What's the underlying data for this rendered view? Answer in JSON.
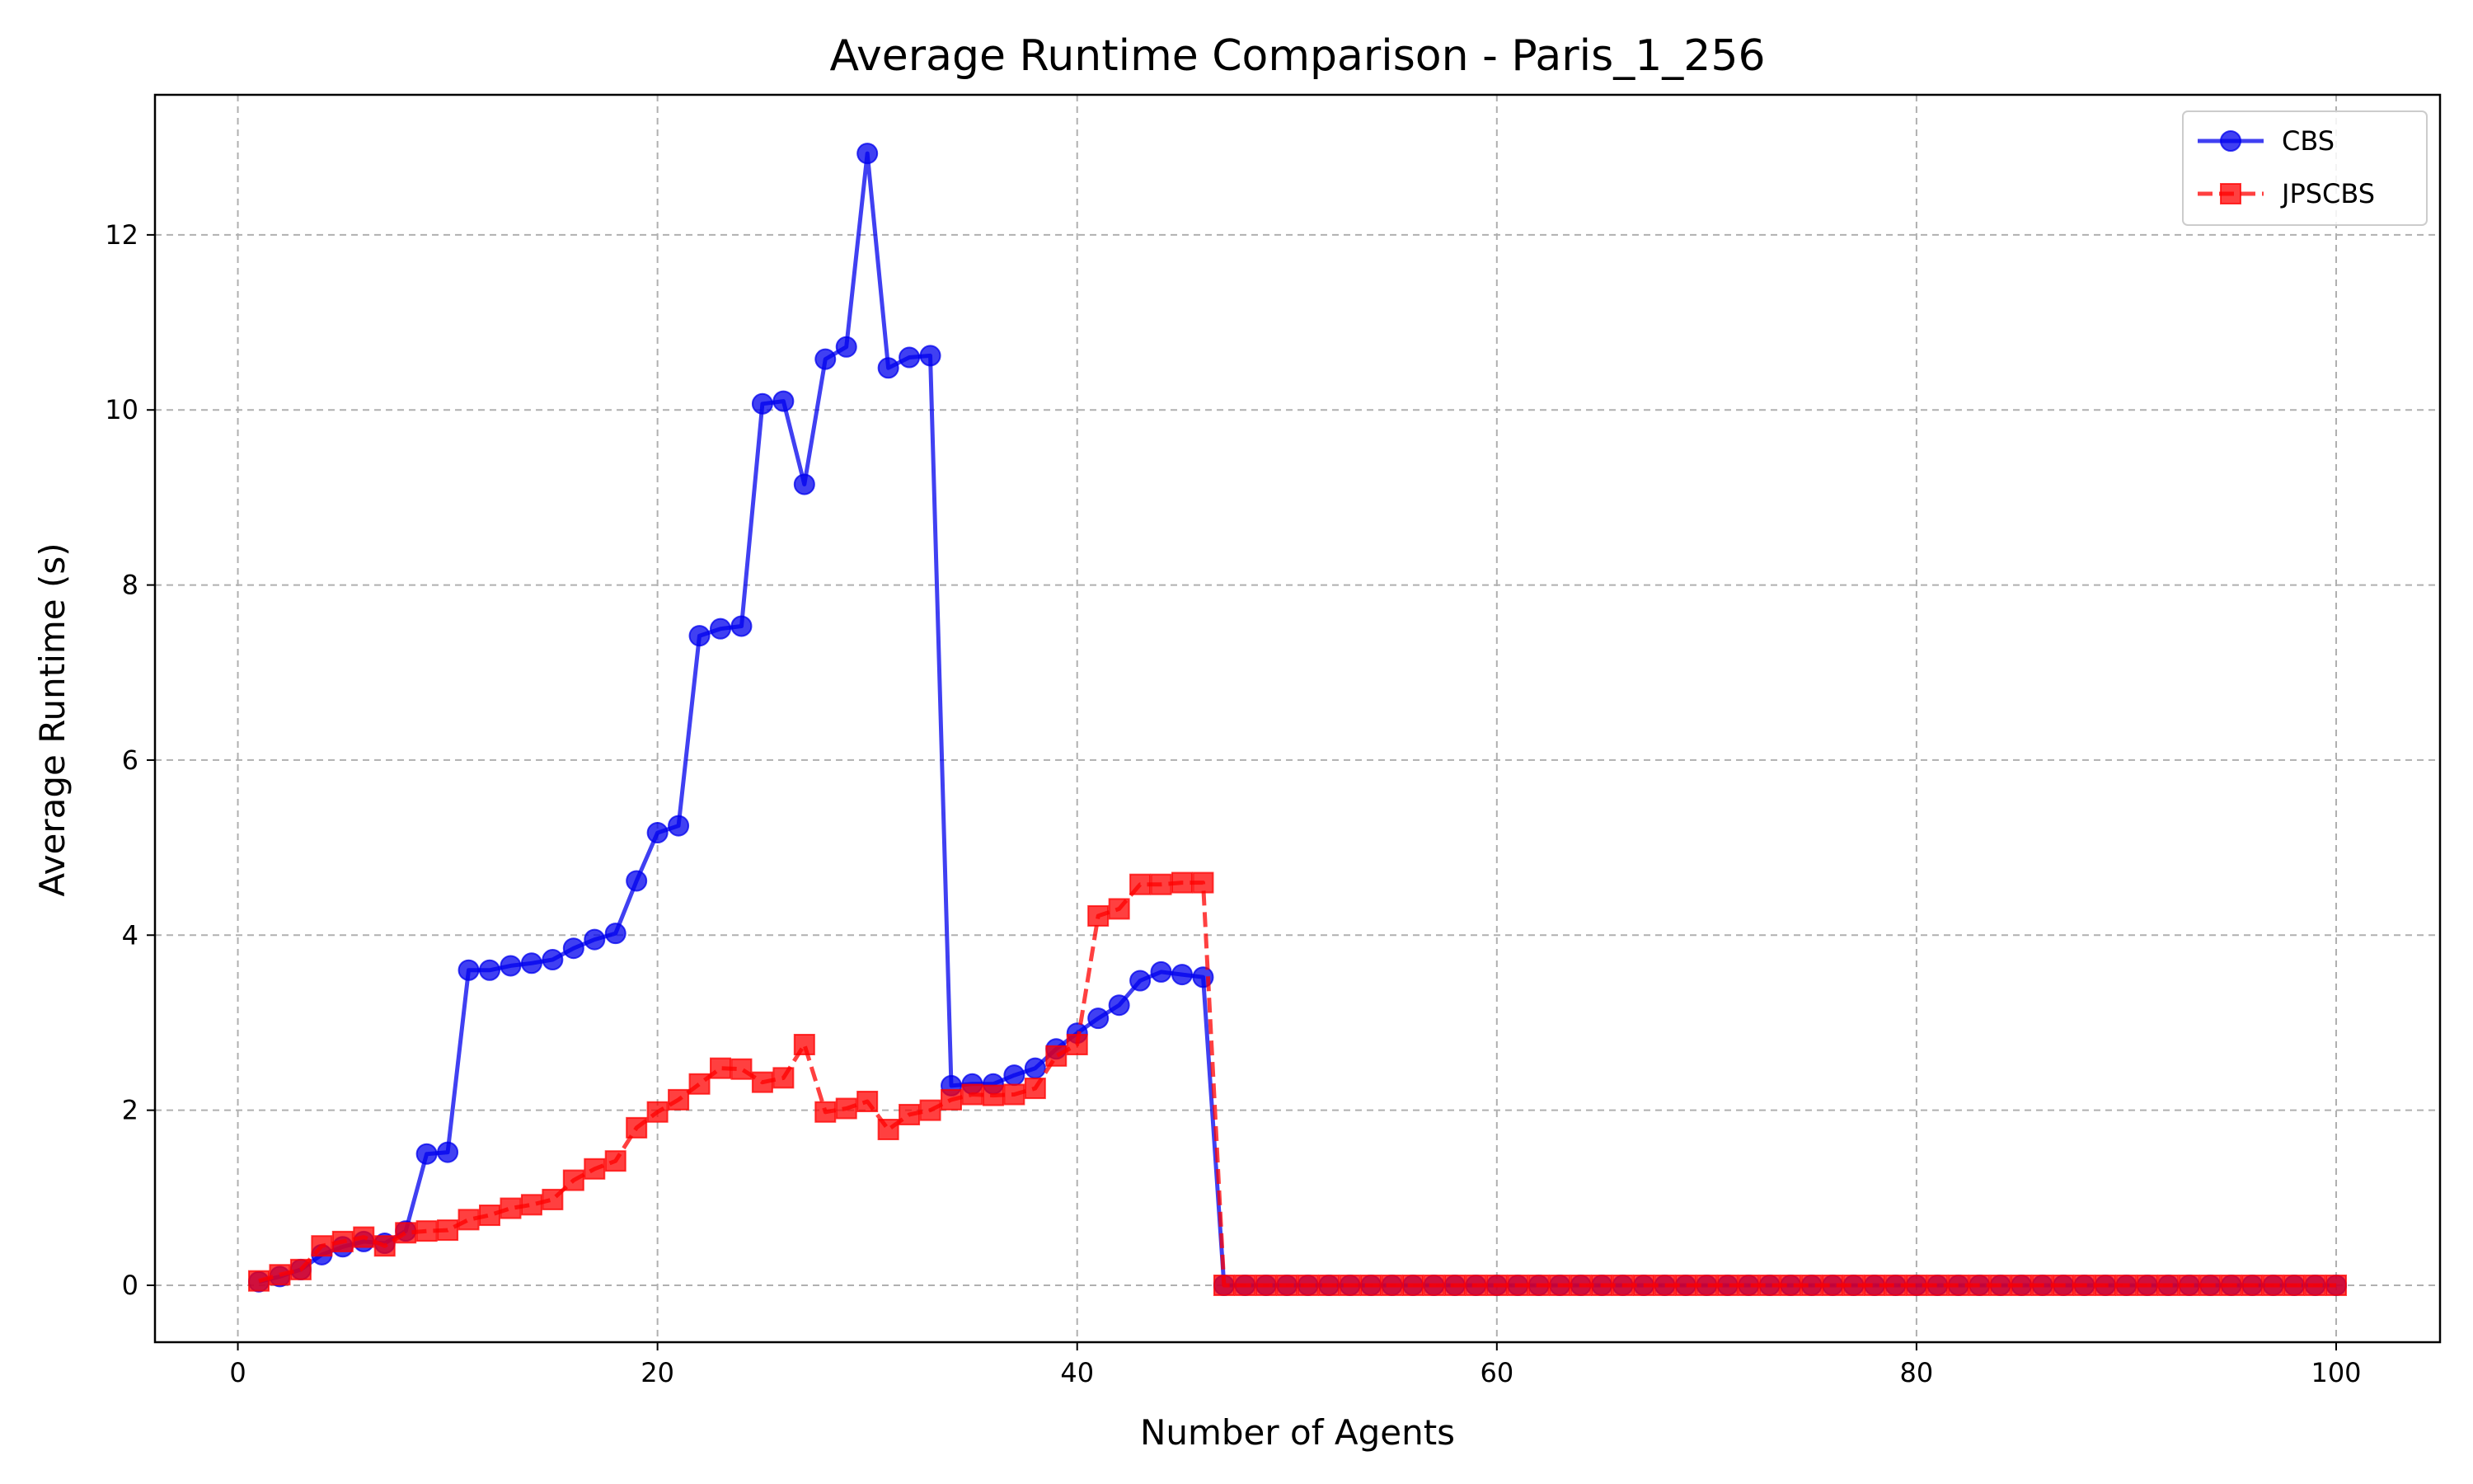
{
  "chart_data": {
    "type": "line",
    "title": "Average Runtime Comparison - Paris_1_256",
    "xlabel": "Number of Agents",
    "ylabel": "Average Runtime (s)",
    "xlim": [
      -3.95,
      104.95
    ],
    "ylim": [
      -0.65,
      13.6
    ],
    "xticks": [
      0,
      20,
      40,
      60,
      80,
      100
    ],
    "yticks": [
      0,
      2,
      4,
      6,
      8,
      10,
      12
    ],
    "grid": true,
    "legend_position": "top-right",
    "x": [
      1,
      2,
      3,
      4,
      5,
      6,
      7,
      8,
      9,
      10,
      11,
      12,
      13,
      14,
      15,
      16,
      17,
      18,
      19,
      20,
      21,
      22,
      23,
      24,
      25,
      26,
      27,
      28,
      29,
      30,
      31,
      32,
      33,
      34,
      35,
      36,
      37,
      38,
      39,
      40,
      41,
      42,
      43,
      44,
      45,
      46,
      47,
      48,
      49,
      50,
      51,
      52,
      53,
      54,
      55,
      56,
      57,
      58,
      59,
      60,
      61,
      62,
      63,
      64,
      65,
      66,
      67,
      68,
      69,
      70,
      71,
      72,
      73,
      74,
      75,
      76,
      77,
      78,
      79,
      80,
      81,
      82,
      83,
      84,
      85,
      86,
      87,
      88,
      89,
      90,
      91,
      92,
      93,
      94,
      95,
      96,
      97,
      98,
      99,
      100
    ],
    "series": [
      {
        "name": "CBS",
        "color": "#0000ee",
        "line_style": "solid",
        "marker": "circle",
        "values": [
          0.04,
          0.1,
          0.18,
          0.35,
          0.44,
          0.5,
          0.48,
          0.62,
          1.5,
          1.52,
          3.6,
          3.6,
          3.65,
          3.68,
          3.72,
          3.85,
          3.95,
          4.02,
          4.62,
          5.17,
          5.25,
          7.42,
          7.5,
          7.53,
          10.07,
          10.1,
          9.15,
          10.58,
          10.72,
          12.93,
          10.48,
          10.6,
          10.62,
          2.28,
          2.3,
          2.3,
          2.4,
          2.48,
          2.7,
          2.88,
          3.05,
          3.2,
          3.48,
          3.58,
          3.55,
          3.52,
          0,
          0,
          0,
          0,
          0,
          0,
          0,
          0,
          0,
          0,
          0,
          0,
          0,
          0,
          0,
          0,
          0,
          0,
          0,
          0,
          0,
          0,
          0,
          0,
          0,
          0,
          0,
          0,
          0,
          0,
          0,
          0,
          0,
          0,
          0,
          0,
          0,
          0,
          0,
          0,
          0,
          0,
          0,
          0,
          0,
          0,
          0,
          0,
          0,
          0,
          0,
          0,
          0,
          0
        ]
      },
      {
        "name": "JPSCBS",
        "color": "#ff0000",
        "line_style": "dashed",
        "marker": "square",
        "values": [
          0.05,
          0.12,
          0.18,
          0.45,
          0.5,
          0.55,
          0.45,
          0.6,
          0.62,
          0.63,
          0.75,
          0.8,
          0.88,
          0.92,
          0.98,
          1.2,
          1.33,
          1.42,
          1.8,
          1.98,
          2.12,
          2.3,
          2.48,
          2.47,
          2.32,
          2.37,
          2.75,
          1.98,
          2.02,
          2.1,
          1.78,
          1.95,
          2,
          2.12,
          2.18,
          2.17,
          2.18,
          2.25,
          2.62,
          2.75,
          4.22,
          4.3,
          4.58,
          4.58,
          4.6,
          4.6,
          0,
          0,
          0,
          0,
          0,
          0,
          0,
          0,
          0,
          0,
          0,
          0,
          0,
          0,
          0,
          0,
          0,
          0,
          0,
          0,
          0,
          0,
          0,
          0,
          0,
          0,
          0,
          0,
          0,
          0,
          0,
          0,
          0,
          0,
          0,
          0,
          0,
          0,
          0,
          0,
          0,
          0,
          0,
          0,
          0,
          0,
          0,
          0,
          0,
          0,
          0,
          0,
          0,
          0
        ]
      }
    ]
  }
}
